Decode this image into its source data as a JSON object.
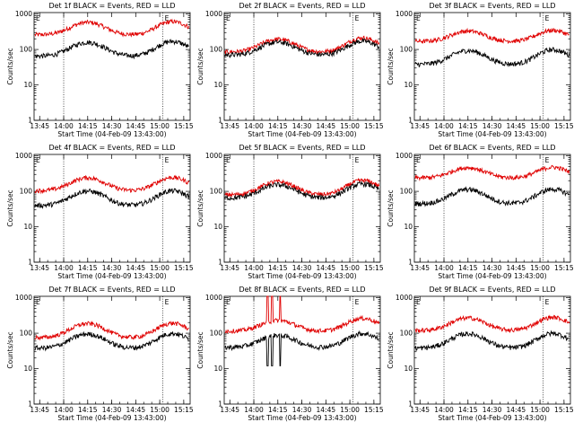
{
  "chart_data": {
    "type": "line",
    "grid": "3x3",
    "x_axis": {
      "label": "Start Time (04-Feb-09 13:43:00)",
      "range_minutes": [
        -1.5,
        96
      ],
      "ticks": [
        {
          "t": 2,
          "label": "13:45"
        },
        {
          "t": 17,
          "label": "14:00"
        },
        {
          "t": 32,
          "label": "14:15"
        },
        {
          "t": 47,
          "label": "14:30"
        },
        {
          "t": 62,
          "label": "14:45"
        },
        {
          "t": 77,
          "label": "15:00"
        },
        {
          "t": 92,
          "label": "15:15"
        }
      ],
      "markers_minutes": [
        17,
        79
      ]
    },
    "y_axis": {
      "label": "Counts/sec",
      "scale": "log",
      "range": [
        1,
        1100
      ],
      "ticks": [
        {
          "v": 1,
          "label": "1"
        },
        {
          "v": 10,
          "label": "10"
        },
        {
          "v": 100,
          "label": "100"
        },
        {
          "v": 1000,
          "label": "1000"
        }
      ]
    },
    "legend": "BLACK = Events, RED = LLD",
    "corner_label": "E",
    "series_names": [
      "Events",
      "LLD"
    ],
    "colors": {
      "events": "#000000",
      "lld": "#e00000"
    },
    "panels": [
      {
        "title": "Det 1f BLACK = Events, RED = LLD",
        "base_events": 65,
        "events_amp": [
          1.45,
          1.6
        ],
        "base_lld": 260,
        "lld_amp": [
          1.25,
          1.35
        ]
      },
      {
        "title": "Det 2f BLACK = Events, RED = LLD",
        "base_events": 70,
        "events_amp": [
          1.3,
          1.45
        ],
        "base_lld": 85,
        "lld_amp": [
          1.3,
          1.5
        ]
      },
      {
        "title": "Det 3f BLACK = Events, RED = LLD",
        "base_events": 38,
        "events_amp": [
          1.45,
          1.6
        ],
        "base_lld": 170,
        "lld_amp": [
          0.95,
          1.05
        ]
      },
      {
        "title": "Det 4f BLACK = Events, RED = LLD",
        "base_events": 40,
        "events_amp": [
          1.55,
          1.6
        ],
        "base_lld": 105,
        "lld_amp": [
          1.3,
          1.35
        ]
      },
      {
        "title": "Det 5f BLACK = Events, RED = LLD",
        "base_events": 65,
        "events_amp": [
          1.35,
          1.5
        ],
        "base_lld": 80,
        "lld_amp": [
          1.35,
          1.55
        ]
      },
      {
        "title": "Det 6f BLACK = Events, RED = LLD",
        "base_events": 45,
        "events_amp": [
          1.5,
          1.55
        ],
        "base_lld": 240,
        "lld_amp": [
          0.95,
          1.0
        ]
      },
      {
        "title": "Det 7f BLACK = Events, RED = LLD",
        "base_events": 38,
        "events_amp": [
          1.5,
          1.6
        ],
        "base_lld": 75,
        "lld_amp": [
          1.5,
          1.55
        ]
      },
      {
        "title": "Det 8f BLACK = Events, RED = LLD",
        "base_events": 40,
        "events_amp": [
          1.2,
          1.45
        ],
        "base_lld": 115,
        "lld_amp": [
          1.0,
          1.3
        ],
        "spikes_minutes": [
          25.5,
          28.5,
          33.5
        ]
      },
      {
        "title": "Det 9f BLACK = Events, RED = LLD",
        "base_events": 38,
        "events_amp": [
          1.55,
          1.6
        ],
        "base_lld": 120,
        "lld_amp": [
          1.25,
          1.35
        ]
      }
    ]
  }
}
